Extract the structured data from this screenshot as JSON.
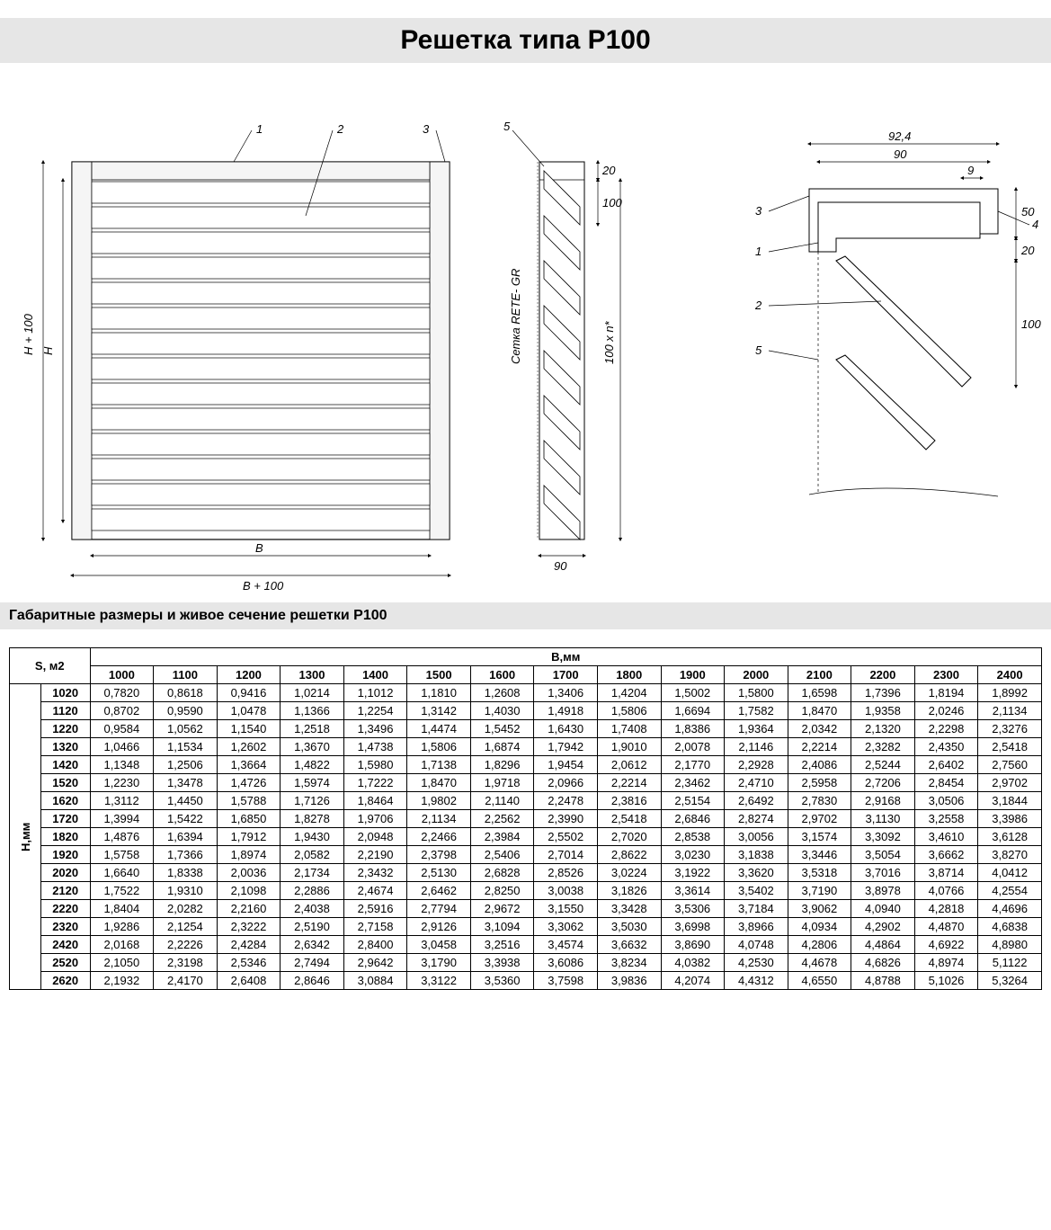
{
  "title": "Решетка типа Р100",
  "subtitle": "Габаритные размеры и живое сечение решетки Р100",
  "diagram": {
    "callouts": {
      "c1": "1",
      "c2": "2",
      "c3": "3",
      "c4": "4",
      "c5": "5"
    },
    "dims": {
      "H": "H",
      "H100": "H + 100",
      "B": "B",
      "B100": "B + 100",
      "d20": "20",
      "d100": "100",
      "d100n": "100 x n*",
      "d90": "90",
      "d92_4": "92,4",
      "d9": "9",
      "d50": "50",
      "mesh": "Сетка RETE- GR"
    },
    "colors": {
      "stroke": "#000000",
      "fill": "#f2f2f2",
      "bg": "#ffffff"
    }
  },
  "table": {
    "corner_label": "S, м2",
    "col_group_label": "В,мм",
    "row_group_label": "Н,мм",
    "columns": [
      "1000",
      "1100",
      "1200",
      "1300",
      "1400",
      "1500",
      "1600",
      "1700",
      "1800",
      "1900",
      "2000",
      "2100",
      "2200",
      "2300",
      "2400"
    ],
    "row_headers": [
      "1020",
      "1120",
      "1220",
      "1320",
      "1420",
      "1520",
      "1620",
      "1720",
      "1820",
      "1920",
      "2020",
      "2120",
      "2220",
      "2320",
      "2420",
      "2520",
      "2620"
    ],
    "rows": [
      [
        "0,7820",
        "0,8618",
        "0,9416",
        "1,0214",
        "1,1012",
        "1,1810",
        "1,2608",
        "1,3406",
        "1,4204",
        "1,5002",
        "1,5800",
        "1,6598",
        "1,7396",
        "1,8194",
        "1,8992"
      ],
      [
        "0,8702",
        "0,9590",
        "1,0478",
        "1,1366",
        "1,2254",
        "1,3142",
        "1,4030",
        "1,4918",
        "1,5806",
        "1,6694",
        "1,7582",
        "1,8470",
        "1,9358",
        "2,0246",
        "2,1134"
      ],
      [
        "0,9584",
        "1,0562",
        "1,1540",
        "1,2518",
        "1,3496",
        "1,4474",
        "1,5452",
        "1,6430",
        "1,7408",
        "1,8386",
        "1,9364",
        "2,0342",
        "2,1320",
        "2,2298",
        "2,3276"
      ],
      [
        "1,0466",
        "1,1534",
        "1,2602",
        "1,3670",
        "1,4738",
        "1,5806",
        "1,6874",
        "1,7942",
        "1,9010",
        "2,0078",
        "2,1146",
        "2,2214",
        "2,3282",
        "2,4350",
        "2,5418"
      ],
      [
        "1,1348",
        "1,2506",
        "1,3664",
        "1,4822",
        "1,5980",
        "1,7138",
        "1,8296",
        "1,9454",
        "2,0612",
        "2,1770",
        "2,2928",
        "2,4086",
        "2,5244",
        "2,6402",
        "2,7560"
      ],
      [
        "1,2230",
        "1,3478",
        "1,4726",
        "1,5974",
        "1,7222",
        "1,8470",
        "1,9718",
        "2,0966",
        "2,2214",
        "2,3462",
        "2,4710",
        "2,5958",
        "2,7206",
        "2,8454",
        "2,9702"
      ],
      [
        "1,3112",
        "1,4450",
        "1,5788",
        "1,7126",
        "1,8464",
        "1,9802",
        "2,1140",
        "2,2478",
        "2,3816",
        "2,5154",
        "2,6492",
        "2,7830",
        "2,9168",
        "3,0506",
        "3,1844"
      ],
      [
        "1,3994",
        "1,5422",
        "1,6850",
        "1,8278",
        "1,9706",
        "2,1134",
        "2,2562",
        "2,3990",
        "2,5418",
        "2,6846",
        "2,8274",
        "2,9702",
        "3,1130",
        "3,2558",
        "3,3986"
      ],
      [
        "1,4876",
        "1,6394",
        "1,7912",
        "1,9430",
        "2,0948",
        "2,2466",
        "2,3984",
        "2,5502",
        "2,7020",
        "2,8538",
        "3,0056",
        "3,1574",
        "3,3092",
        "3,4610",
        "3,6128"
      ],
      [
        "1,5758",
        "1,7366",
        "1,8974",
        "2,0582",
        "2,2190",
        "2,3798",
        "2,5406",
        "2,7014",
        "2,8622",
        "3,0230",
        "3,1838",
        "3,3446",
        "3,5054",
        "3,6662",
        "3,8270"
      ],
      [
        "1,6640",
        "1,8338",
        "2,0036",
        "2,1734",
        "2,3432",
        "2,5130",
        "2,6828",
        "2,8526",
        "3,0224",
        "3,1922",
        "3,3620",
        "3,5318",
        "3,7016",
        "3,8714",
        "4,0412"
      ],
      [
        "1,7522",
        "1,9310",
        "2,1098",
        "2,2886",
        "2,4674",
        "2,6462",
        "2,8250",
        "3,0038",
        "3,1826",
        "3,3614",
        "3,5402",
        "3,7190",
        "3,8978",
        "4,0766",
        "4,2554"
      ],
      [
        "1,8404",
        "2,0282",
        "2,2160",
        "2,4038",
        "2,5916",
        "2,7794",
        "2,9672",
        "3,1550",
        "3,3428",
        "3,5306",
        "3,7184",
        "3,9062",
        "4,0940",
        "4,2818",
        "4,4696"
      ],
      [
        "1,9286",
        "2,1254",
        "2,3222",
        "2,5190",
        "2,7158",
        "2,9126",
        "3,1094",
        "3,3062",
        "3,5030",
        "3,6998",
        "3,8966",
        "4,0934",
        "4,2902",
        "4,4870",
        "4,6838"
      ],
      [
        "2,0168",
        "2,2226",
        "2,4284",
        "2,6342",
        "2,8400",
        "3,0458",
        "3,2516",
        "3,4574",
        "3,6632",
        "3,8690",
        "4,0748",
        "4,2806",
        "4,4864",
        "4,6922",
        "4,8980"
      ],
      [
        "2,1050",
        "2,3198",
        "2,5346",
        "2,7494",
        "2,9642",
        "3,1790",
        "3,3938",
        "3,6086",
        "3,8234",
        "4,0382",
        "4,2530",
        "4,4678",
        "4,6826",
        "4,8974",
        "5,1122"
      ],
      [
        "2,1932",
        "2,4170",
        "2,6408",
        "2,8646",
        "3,0884",
        "3,3122",
        "3,5360",
        "3,7598",
        "3,9836",
        "4,2074",
        "4,4312",
        "4,6550",
        "4,8788",
        "5,1026",
        "5,3264"
      ]
    ]
  }
}
